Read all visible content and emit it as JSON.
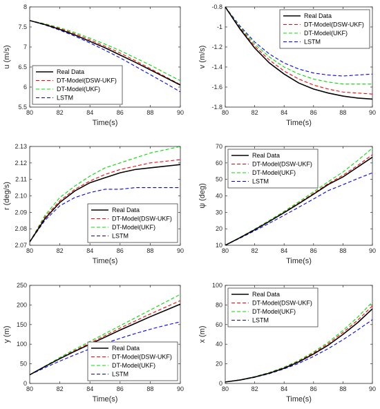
{
  "figure": {
    "title": ""
  },
  "colors": {
    "real": "#000000",
    "dsw": "#ff0000",
    "ukf": "#00dd00",
    "lstm": "#0000ff"
  },
  "chart_data": [
    {
      "type": "line",
      "panel": "u",
      "xlabel": "Time(s)",
      "ylabel": "u (m/s)",
      "xlim": [
        80,
        90
      ],
      "ylim": [
        5.5,
        8
      ],
      "xticks": [
        "80",
        "82",
        "84",
        "86",
        "88",
        "90"
      ],
      "yticks": [
        "5.5",
        "6",
        "6.5",
        "7",
        "7.5",
        "8"
      ],
      "legend_position": "bottom-left",
      "grid": false,
      "x": [
        80,
        81,
        82,
        83,
        84,
        85,
        86,
        87,
        88,
        89,
        90
      ],
      "series": [
        {
          "name": "Real Data",
          "color": "real",
          "dash": "solid",
          "values": [
            7.66,
            7.56,
            7.44,
            7.3,
            7.14,
            6.98,
            6.8,
            6.62,
            6.43,
            6.24,
            6.05
          ]
        },
        {
          "name": "DT-Model(DSW-UKF)",
          "color": "dsw",
          "dash": "dashed",
          "values": [
            7.66,
            7.57,
            7.46,
            7.33,
            7.18,
            7.02,
            6.85,
            6.66,
            6.46,
            6.26,
            6.06
          ]
        },
        {
          "name": "DT-Model(UKF)",
          "color": "ukf",
          "dash": "dashed",
          "values": [
            7.66,
            7.58,
            7.48,
            7.36,
            7.22,
            7.07,
            6.91,
            6.73,
            6.55,
            6.35,
            6.16
          ]
        },
        {
          "name": "LSTM",
          "color": "lstm",
          "dash": "dashed",
          "values": [
            7.66,
            7.55,
            7.42,
            7.27,
            7.1,
            6.92,
            6.73,
            6.52,
            6.31,
            6.1,
            5.88
          ]
        }
      ]
    },
    {
      "type": "line",
      "panel": "v",
      "xlabel": "Time(s)",
      "ylabel": "v (m/s)",
      "xlim": [
        80,
        90
      ],
      "ylim": [
        -1.8,
        -0.8
      ],
      "xticks": [
        "80",
        "82",
        "84",
        "86",
        "88",
        "90"
      ],
      "yticks": [
        "-1.8",
        "-1.6",
        "-1.4",
        "-1.2",
        "-1",
        "-0.8"
      ],
      "legend_position": "top-right",
      "grid": false,
      "x": [
        80,
        81,
        82,
        83,
        84,
        85,
        86,
        87,
        88,
        89,
        90
      ],
      "series": [
        {
          "name": "Real Data",
          "color": "real",
          "dash": "solid",
          "values": [
            -0.8,
            -1.02,
            -1.21,
            -1.36,
            -1.47,
            -1.56,
            -1.62,
            -1.66,
            -1.69,
            -1.71,
            -1.72
          ]
        },
        {
          "name": "DT-Model(DSW-UKF)",
          "color": "dsw",
          "dash": "dashed",
          "values": [
            -0.8,
            -1.01,
            -1.19,
            -1.33,
            -1.44,
            -1.52,
            -1.58,
            -1.62,
            -1.65,
            -1.66,
            -1.67
          ]
        },
        {
          "name": "DT-Model(UKF)",
          "color": "ukf",
          "dash": "dashed",
          "values": [
            -0.8,
            -1.0,
            -1.17,
            -1.3,
            -1.4,
            -1.47,
            -1.52,
            -1.55,
            -1.57,
            -1.57,
            -1.57
          ]
        },
        {
          "name": "LSTM",
          "color": "lstm",
          "dash": "dashed",
          "values": [
            -0.8,
            -0.99,
            -1.15,
            -1.27,
            -1.36,
            -1.42,
            -1.46,
            -1.48,
            -1.49,
            -1.48,
            -1.47
          ]
        }
      ]
    },
    {
      "type": "line",
      "panel": "r",
      "xlabel": "Time(s)",
      "ylabel": "r (deg/s)",
      "xlim": [
        80,
        90
      ],
      "ylim": [
        2.07,
        2.13
      ],
      "xticks": [
        "80",
        "82",
        "84",
        "86",
        "88",
        "90"
      ],
      "yticks": [
        "2.07",
        "2.08",
        "2.09",
        "2.10",
        "2.11",
        "2.12",
        "2.13"
      ],
      "legend_position": "bottom-right",
      "grid": false,
      "x": [
        80,
        81,
        82,
        83,
        84,
        85,
        86,
        87,
        88,
        89,
        90
      ],
      "series": [
        {
          "name": "Real Data",
          "color": "real",
          "dash": "solid",
          "values": [
            2.072,
            2.086,
            2.096,
            2.103,
            2.108,
            2.111,
            2.114,
            2.116,
            2.117,
            2.118,
            2.119
          ]
        },
        {
          "name": "DT-Model(DSW-UKF)",
          "color": "dsw",
          "dash": "dashed",
          "values": [
            2.072,
            2.087,
            2.097,
            2.104,
            2.109,
            2.113,
            2.116,
            2.118,
            2.12,
            2.121,
            2.122
          ]
        },
        {
          "name": "DT-Model(UKF)",
          "color": "ukf",
          "dash": "dashed",
          "values": [
            2.072,
            2.088,
            2.099,
            2.106,
            2.112,
            2.117,
            2.12,
            2.123,
            2.126,
            2.128,
            2.13
          ]
        },
        {
          "name": "LSTM",
          "color": "lstm",
          "dash": "dashed",
          "values": [
            2.072,
            2.085,
            2.094,
            2.099,
            2.102,
            2.104,
            2.104,
            2.105,
            2.105,
            2.105,
            2.105
          ]
        }
      ]
    },
    {
      "type": "line",
      "panel": "psi",
      "xlabel": "Time(s)",
      "ylabel": "ψ (deg)",
      "xlim": [
        80,
        90
      ],
      "ylim": [
        10,
        70
      ],
      "xticks": [
        "80",
        "82",
        "84",
        "86",
        "88",
        "90"
      ],
      "yticks": [
        "10",
        "20",
        "30",
        "40",
        "50",
        "60",
        "70"
      ],
      "legend_position": "top-left",
      "grid": false,
      "x": [
        80,
        81,
        82,
        83,
        84,
        85,
        86,
        87,
        88,
        89,
        90
      ],
      "series": [
        {
          "name": "Real Data",
          "color": "real",
          "dash": "solid",
          "values": [
            10,
            14.6,
            19.4,
            24.5,
            29.8,
            35.3,
            41.0,
            46.9,
            51.5,
            57.5,
            63.5
          ]
        },
        {
          "name": "DT-Model(DSW-UKF)",
          "color": "dsw",
          "dash": "dashed",
          "values": [
            10,
            14.7,
            19.6,
            24.7,
            30.1,
            35.7,
            41.5,
            47.5,
            52.5,
            58.5,
            65.0
          ]
        },
        {
          "name": "DT-Model(UKF)",
          "color": "ukf",
          "dash": "dashed",
          "values": [
            10,
            14.8,
            19.8,
            25.1,
            30.6,
            36.4,
            42.4,
            48.6,
            54.5,
            61.5,
            69.0
          ]
        },
        {
          "name": "LSTM",
          "color": "lstm",
          "dash": "dashed",
          "values": [
            10,
            14.3,
            18.8,
            23.4,
            28.2,
            33.1,
            38.1,
            43.2,
            46.8,
            50.5,
            54.0
          ]
        }
      ]
    },
    {
      "type": "line",
      "panel": "y",
      "xlabel": "Time(s)",
      "ylabel": "y (m)",
      "xlim": [
        80,
        90
      ],
      "ylim": [
        0,
        250
      ],
      "xticks": [
        "80",
        "82",
        "84",
        "86",
        "88",
        "90"
      ],
      "yticks": [
        "0",
        "50",
        "100",
        "150",
        "200",
        "250"
      ],
      "legend_position": "bottom-right",
      "grid": false,
      "x": [
        80,
        81,
        82,
        83,
        84,
        85,
        86,
        87,
        88,
        89,
        90
      ],
      "series": [
        {
          "name": "Real Data",
          "color": "real",
          "dash": "solid",
          "values": [
            22,
            43,
            63,
            82,
            100,
            118,
            136,
            153,
            170,
            186,
            202
          ]
        },
        {
          "name": "DT-Model(DSW-UKF)",
          "color": "dsw",
          "dash": "dashed",
          "values": [
            22,
            43,
            64,
            84,
            103,
            122,
            141,
            159,
            177,
            194,
            211
          ]
        },
        {
          "name": "DT-Model(UKF)",
          "color": "ukf",
          "dash": "dashed",
          "values": [
            22,
            44,
            66,
            87,
            107,
            127,
            147,
            167,
            187,
            207,
            227
          ]
        },
        {
          "name": "LSTM",
          "color": "lstm",
          "dash": "dashed",
          "values": [
            22,
            40,
            57,
            73,
            88,
            102,
            115,
            127,
            138,
            148,
            157
          ]
        }
      ]
    },
    {
      "type": "line",
      "panel": "x",
      "xlabel": "Time(s)",
      "ylabel": "x (m)",
      "xlim": [
        80,
        90
      ],
      "ylim": [
        0,
        100
      ],
      "xticks": [
        "80",
        "82",
        "84",
        "86",
        "88",
        "90"
      ],
      "yticks": [
        "0",
        "20",
        "40",
        "60",
        "80",
        "100"
      ],
      "legend_position": "top-left",
      "grid": false,
      "x": [
        80,
        81,
        82,
        83,
        84,
        85,
        86,
        87,
        88,
        89,
        90
      ],
      "series": [
        {
          "name": "Real Data",
          "color": "real",
          "dash": "solid",
          "values": [
            1.5,
            3.5,
            6.5,
            10.5,
            15.5,
            22,
            30,
            39,
            50,
            62,
            76
          ]
        },
        {
          "name": "DT-Model(DSW-UKF)",
          "color": "dsw",
          "dash": "dashed",
          "values": [
            1.5,
            3.6,
            6.7,
            10.8,
            16,
            22.7,
            31,
            40.5,
            52,
            64.5,
            79
          ]
        },
        {
          "name": "DT-Model(UKF)",
          "color": "ukf",
          "dash": "dashed",
          "values": [
            1.5,
            3.7,
            6.9,
            11.2,
            16.6,
            23.5,
            32,
            42,
            54,
            67.5,
            83
          ]
        },
        {
          "name": "LSTM",
          "color": "lstm",
          "dash": "dashed",
          "values": [
            1.5,
            3.4,
            6.2,
            10,
            14.8,
            20.5,
            27.5,
            35.5,
            44.5,
            54.5,
            65
          ]
        }
      ]
    }
  ]
}
